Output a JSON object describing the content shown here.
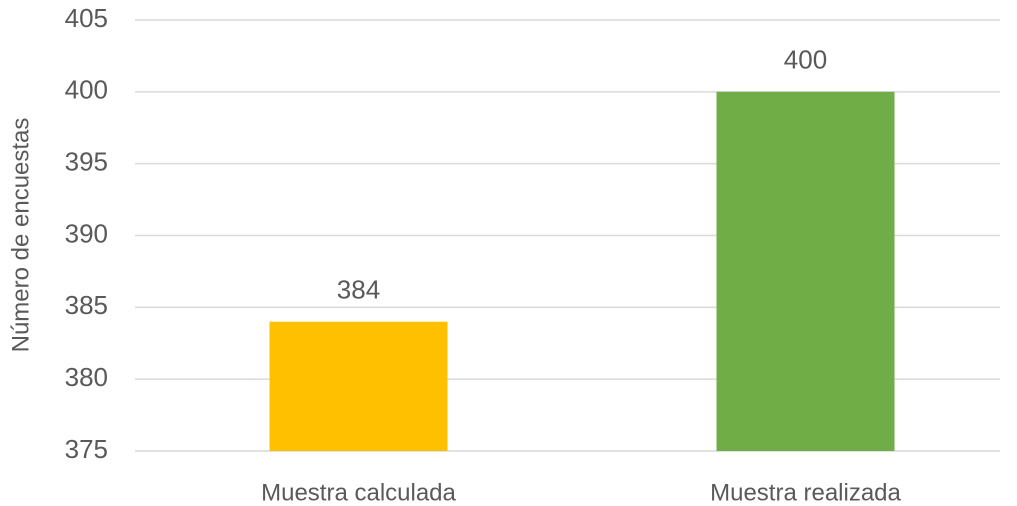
{
  "chart_data": {
    "type": "bar",
    "y_label": "Número de encuestas",
    "categories": [
      "Muestra calculada",
      "Muestra realizada"
    ],
    "values": [
      384,
      400
    ],
    "colors": [
      "#ffc000",
      "#70ad47"
    ],
    "ylim": [
      375,
      405
    ],
    "yticks": [
      375,
      380,
      385,
      390,
      395,
      400,
      405
    ],
    "grid": true
  }
}
